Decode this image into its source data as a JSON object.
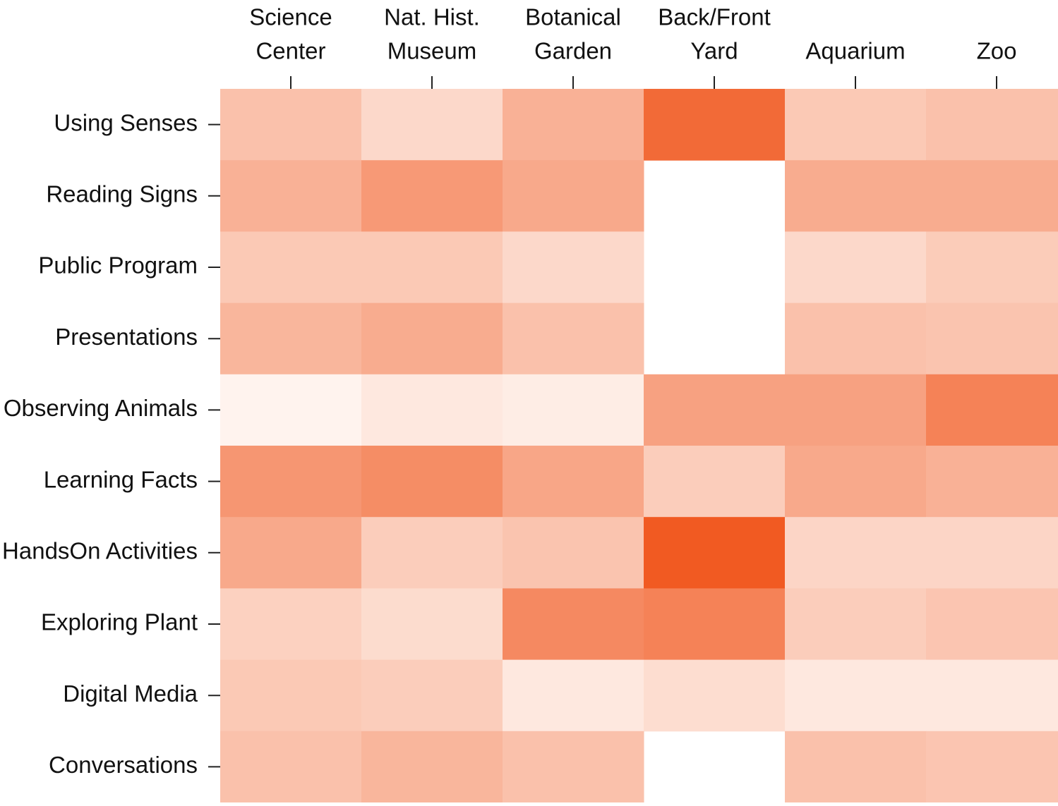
{
  "chart_data": {
    "type": "heatmap",
    "columns": [
      [
        "Science",
        "Center"
      ],
      [
        "Nat. Hist.",
        "Museum"
      ],
      [
        "Botanical",
        "Garden"
      ],
      [
        "Back/Front",
        "Yard"
      ],
      [
        "Aquarium"
      ],
      [
        "Zoo"
      ]
    ],
    "rows": [
      "Using Senses",
      "Reading Signs",
      "Public Program",
      "Presentations",
      "Observing Animals",
      "Learning Facts",
      "HandsOn Activities",
      "Exploring Plant",
      "Digital Media",
      "Conversations"
    ],
    "values": [
      [
        0.35,
        0.2,
        0.45,
        0.9,
        0.3,
        0.35
      ],
      [
        0.45,
        0.6,
        0.5,
        null,
        0.48,
        0.48
      ],
      [
        0.3,
        0.3,
        0.2,
        null,
        0.2,
        0.28
      ],
      [
        0.42,
        0.48,
        0.35,
        null,
        0.35,
        0.33
      ],
      [
        0.03,
        0.1,
        0.07,
        0.55,
        0.55,
        0.75
      ],
      [
        0.62,
        0.68,
        0.52,
        0.27,
        0.5,
        0.45
      ],
      [
        0.5,
        0.27,
        0.33,
        1.0,
        0.22,
        0.22
      ],
      [
        0.25,
        0.18,
        0.7,
        0.75,
        0.27,
        0.32
      ],
      [
        0.3,
        0.27,
        0.1,
        0.17,
        0.1,
        0.1
      ],
      [
        0.35,
        0.42,
        0.35,
        null,
        0.35,
        0.32
      ]
    ],
    "vlim": [
      0,
      1
    ],
    "colormap": [
      "#fff8f4",
      "#f15a22"
    ]
  }
}
